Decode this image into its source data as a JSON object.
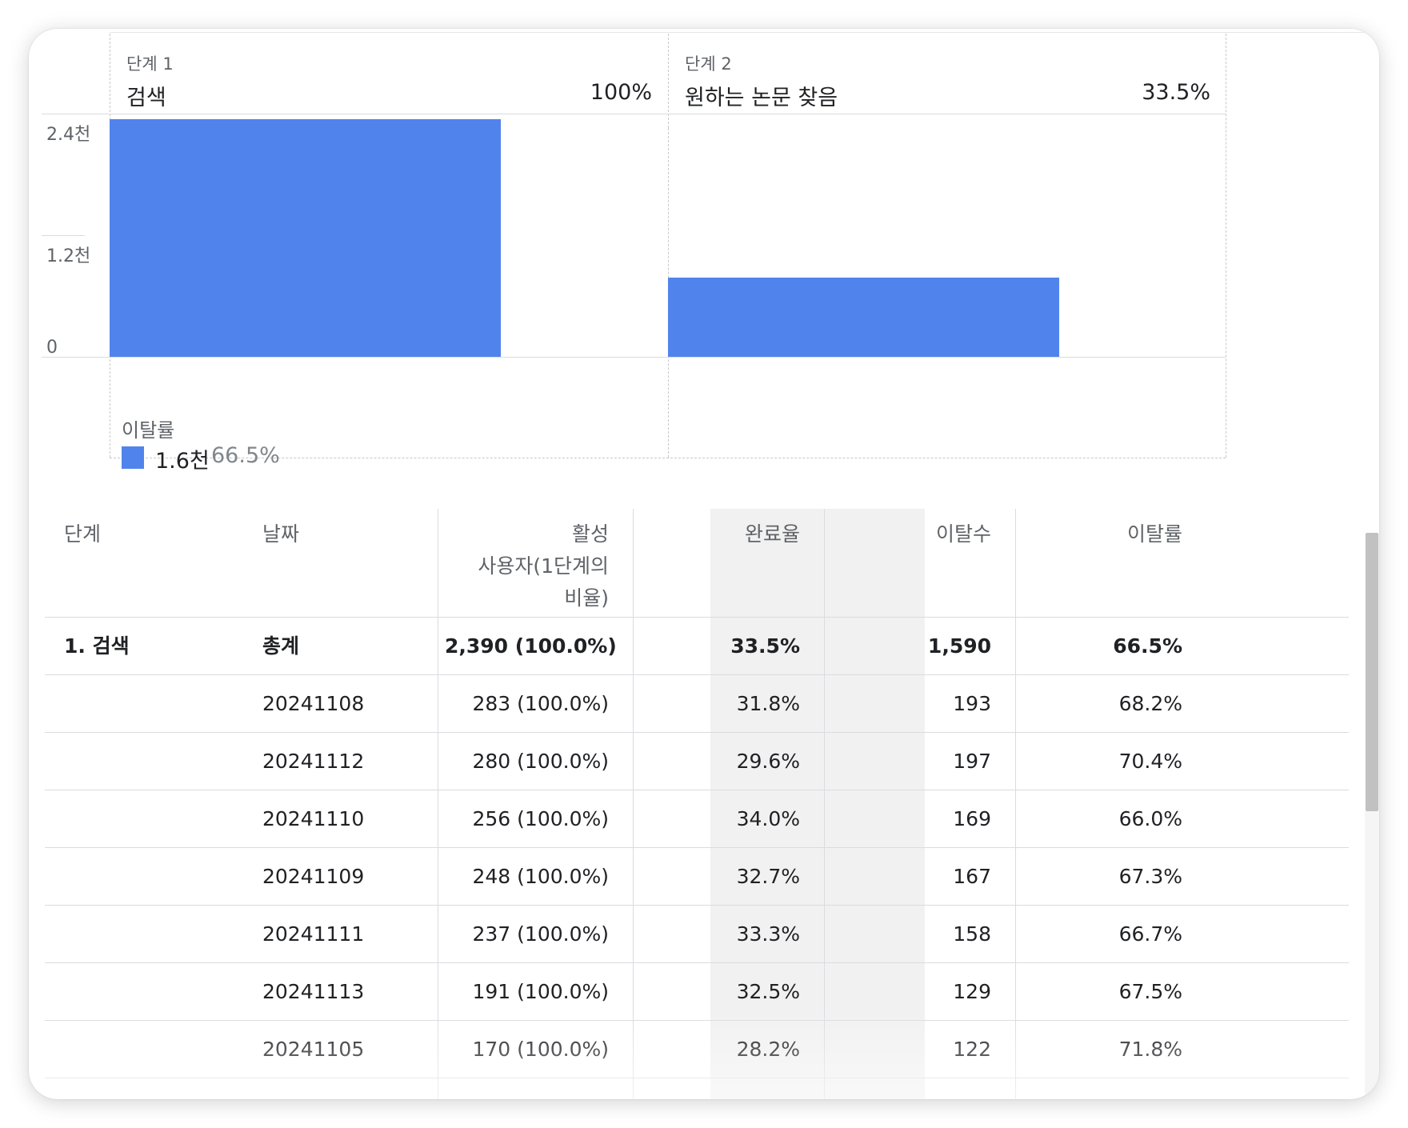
{
  "chart_data": {
    "type": "bar",
    "categories": [
      "검색",
      "원하는 논문 찾음"
    ],
    "step_labels": [
      "단계 1",
      "단계 2"
    ],
    "step_percents": [
      "100%",
      "33.5%"
    ],
    "values": [
      2390,
      800
    ],
    "ylim": [
      0,
      2400
    ],
    "y_ticks": [
      {
        "value": 2400,
        "label": "2.4천"
      },
      {
        "value": 1200,
        "label": "1.2천"
      },
      {
        "value": 0,
        "label": "0"
      }
    ],
    "legend": {
      "title": "이탈률",
      "value": "1.6천",
      "rate": "66.5%",
      "color": "#5183ec"
    }
  },
  "table": {
    "headers": {
      "step": "단계",
      "date": "날짜",
      "active_users_line1": "활성",
      "active_users_line2": "사용자(1단계의",
      "active_users_line3": "비율)",
      "completion_rate": "완료율",
      "abandonments": "이탈수",
      "abandonment_rate": "이탈률"
    },
    "total": {
      "step": "1. 검색",
      "date": "총계",
      "active_users": "2,390 (100.0%)",
      "completion_rate": "33.5%",
      "abandonments": "1,590",
      "abandonment_rate": "66.5%"
    },
    "rows": [
      {
        "date": "20241108",
        "active_users": "283 (100.0%)",
        "completion_rate": "31.8%",
        "abandonments": "193",
        "abandonment_rate": "68.2%"
      },
      {
        "date": "20241112",
        "active_users": "280 (100.0%)",
        "completion_rate": "29.6%",
        "abandonments": "197",
        "abandonment_rate": "70.4%"
      },
      {
        "date": "20241110",
        "active_users": "256 (100.0%)",
        "completion_rate": "34.0%",
        "abandonments": "169",
        "abandonment_rate": "66.0%"
      },
      {
        "date": "20241109",
        "active_users": "248 (100.0%)",
        "completion_rate": "32.7%",
        "abandonments": "167",
        "abandonment_rate": "67.3%"
      },
      {
        "date": "20241111",
        "active_users": "237 (100.0%)",
        "completion_rate": "33.3%",
        "abandonments": "158",
        "abandonment_rate": "66.7%"
      },
      {
        "date": "20241113",
        "active_users": "191 (100.0%)",
        "completion_rate": "32.5%",
        "abandonments": "129",
        "abandonment_rate": "67.5%"
      },
      {
        "date": "20241105",
        "active_users": "170 (100.0%)",
        "completion_rate": "28.2%",
        "abandonments": "122",
        "abandonment_rate": "71.8%"
      }
    ]
  }
}
